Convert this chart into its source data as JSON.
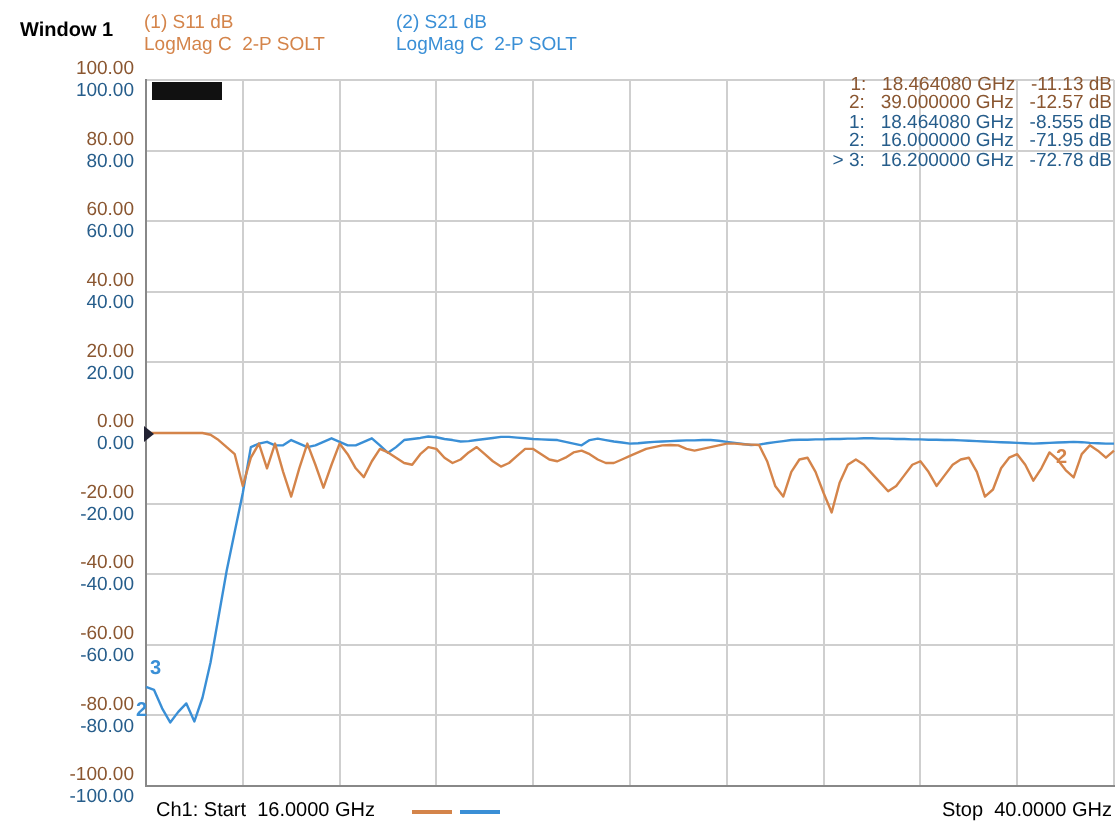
{
  "chart_data": {
    "type": "line",
    "title": "Window 1",
    "legend": "top",
    "grid": true,
    "tick_labels": "y",
    "marker": "none",
    "line_style": "solid",
    "categories": [
      null,
      null,
      null,
      null,
      null,
      null,
      null,
      null,
      null,
      null,
      null,
      null,
      null,
      null,
      null,
      null,
      null,
      null,
      null,
      null,
      null,
      null,
      null,
      null,
      null,
      null,
      null,
      null,
      null,
      null,
      null,
      null,
      null,
      null,
      null,
      null,
      null,
      null,
      null,
      null,
      null,
      null,
      null,
      null,
      null,
      null,
      null,
      null,
      null,
      null,
      null,
      null,
      null,
      null,
      null,
      null,
      null,
      null,
      null,
      null,
      null,
      null,
      null,
      null,
      null,
      null,
      null,
      null,
      null,
      null,
      null,
      null,
      null,
      null,
      null,
      null,
      null,
      null,
      null,
      null,
      null,
      null,
      null,
      null,
      null,
      null,
      null,
      null,
      null,
      null,
      null,
      null,
      null,
      null,
      null,
      null,
      null,
      null,
      null,
      null,
      null,
      null,
      null,
      null,
      null,
      null,
      null,
      null,
      null,
      null,
      null,
      null,
      null,
      null,
      null,
      null,
      null,
      null,
      null,
      null,
      null
    ],
    "ylim": [
      -100,
      100
    ],
    "yticks": [
      {
        "value": -100,
        "label": "-100.00"
      },
      {
        "value": -80,
        "label": "-80.00"
      },
      {
        "value": -60,
        "label": "-60.00"
      },
      {
        "value": -40,
        "label": "-40.00"
      },
      {
        "value": -20,
        "label": "-20.00"
      },
      {
        "value": 0,
        "label": "0.00"
      },
      {
        "value": 20,
        "label": "20.00"
      },
      {
        "value": 40,
        "label": "40.00"
      },
      {
        "value": 60,
        "label": "60.00"
      },
      {
        "value": 80,
        "label": "80.00"
      },
      {
        "value": 100,
        "label": "100.00"
      }
    ],
    "y2lim": [
      -100,
      100
    ],
    "y2ticks": [
      {
        "value": -100,
        "label": "-100.00"
      },
      {
        "value": -80,
        "label": "-80.00"
      },
      {
        "value": -60,
        "label": "-60.00"
      },
      {
        "value": -40,
        "label": "-40.00"
      },
      {
        "value": -20,
        "label": "-20.00"
      },
      {
        "value": 0,
        "label": "0.00"
      },
      {
        "value": 20,
        "label": "20.00"
      },
      {
        "value": 40,
        "label": "40.00"
      },
      {
        "value": 60,
        "label": "60.00"
      },
      {
        "value": 80,
        "label": "80.00"
      },
      {
        "value": 100,
        "label": "100.00"
      }
    ],
    "series": [
      {
        "name": "(1) S11 dB",
        "color": "#d4844a",
        "values": [
          0,
          0,
          0,
          0,
          0,
          0,
          0,
          0,
          -0.5,
          -2,
          -4,
          -6,
          -15,
          -7,
          -3,
          -10,
          -3,
          -11,
          -18,
          -10,
          -3,
          -9,
          -15.5,
          -9,
          -3,
          -6,
          -10,
          -12.5,
          -8,
          -4.5,
          -5.5,
          -7,
          -8.5,
          -9,
          -6,
          -4,
          -4.5,
          -7,
          -8.5,
          -7.5,
          -5.5,
          -4,
          -6,
          -8,
          -9.5,
          -8.5,
          -6.5,
          -4.5,
          -4.5,
          -6,
          -7.5,
          -8,
          -7,
          -5.5,
          -5,
          -6,
          -7.5,
          -8.5,
          -8.5,
          -7.5,
          -6.5,
          -5.5,
          -4.5,
          -4,
          -3.5,
          -3.4,
          -3.5,
          -4.5,
          -5,
          -4.5,
          -4,
          -3.5,
          -3,
          -3,
          -3.2,
          -3.3,
          -3.4,
          -8,
          -15,
          -18,
          -11,
          -7.5,
          -7,
          -11,
          -17,
          -22.5,
          -14,
          -9,
          -7.5,
          -9,
          -11.5,
          -14,
          -16.5,
          -15,
          -12,
          -9,
          -8,
          -11,
          -15,
          -12,
          -9,
          -7.5,
          -7,
          -11,
          -18,
          -16,
          -10,
          -7,
          -6,
          -9,
          -13.5,
          -10,
          -5.5,
          -7.5,
          -10.5,
          -12.57,
          -6,
          -3.5,
          -5,
          -7,
          -5
        ],
        "value_labels": [
          null,
          null,
          null,
          null,
          null,
          null,
          null,
          null,
          null,
          null,
          null,
          null,
          null,
          null,
          null,
          null,
          null,
          null,
          null,
          null,
          null,
          null,
          null,
          null,
          null,
          null,
          null,
          null,
          null,
          null,
          null,
          null,
          null,
          null,
          null,
          null,
          null,
          null,
          null,
          null,
          null,
          null,
          null,
          null,
          null,
          null,
          null,
          null,
          null,
          null,
          null,
          null,
          null,
          null,
          null,
          null,
          null,
          null,
          null,
          null,
          null,
          null,
          null,
          null,
          null,
          null,
          null,
          null,
          null,
          null,
          null,
          null,
          null,
          null,
          null,
          null,
          null,
          null,
          null,
          null,
          null,
          null,
          null,
          null,
          null,
          null,
          null,
          null,
          null,
          null,
          null,
          null,
          null,
          null,
          null,
          null,
          null,
          null,
          null,
          null,
          null,
          null,
          null,
          null,
          null,
          null,
          null,
          null,
          null,
          null,
          null,
          null,
          null,
          null,
          null,
          null,
          null,
          null,
          null,
          null,
          null
        ]
      },
      {
        "name": "(2) S21 dB",
        "color": "#3a8fd6",
        "axis": "y2",
        "values": [
          -71.95,
          -72.78,
          -78,
          -82,
          -79,
          -76.6,
          -81.7,
          -75,
          -65,
          -52,
          -39,
          -28,
          -17,
          -4,
          -3,
          -2.5,
          -3.5,
          -3.5,
          -2,
          -3,
          -4,
          -3.5,
          -2.5,
          -1.5,
          -2.5,
          -3.5,
          -3.5,
          -2.5,
          -1.5,
          -3.5,
          -5.6,
          -4,
          -2,
          -1.7,
          -1.4,
          -1,
          -1.2,
          -1.7,
          -2,
          -2.4,
          -2.3,
          -2,
          -1.7,
          -1.4,
          -1.1,
          -1.1,
          -1.3,
          -1.5,
          -1.7,
          -1.8,
          -1.9,
          -2,
          -2.5,
          -3,
          -3.5,
          -2,
          -1.6,
          -2,
          -2.4,
          -2.7,
          -3,
          -2.9,
          -2.7,
          -2.5,
          -2.4,
          -2.3,
          -2.2,
          -2.1,
          -2.1,
          -2,
          -2,
          -2.2,
          -2.5,
          -2.8,
          -3.1,
          -3.4,
          -3.3,
          -2.9,
          -2.6,
          -2.3,
          -2,
          -1.9,
          -1.9,
          -1.8,
          -1.8,
          -1.7,
          -1.7,
          -1.6,
          -1.6,
          -1.5,
          -1.5,
          -1.6,
          -1.6,
          -1.7,
          -1.7,
          -1.8,
          -1.8,
          -1.9,
          -1.9,
          -2,
          -2,
          -2.1,
          -2.2,
          -2.3,
          -2.4,
          -2.5,
          -2.6,
          -2.7,
          -2.8,
          -2.9,
          -3,
          -2.9,
          -2.8,
          -2.7,
          -2.6,
          -2.5,
          -2.6,
          -2.8,
          -2.9,
          -3,
          -3
        ],
        "value_labels": [
          null,
          null,
          null,
          null,
          null,
          null,
          null,
          null,
          null,
          null,
          null,
          null,
          null,
          null,
          null,
          null,
          null,
          null,
          null,
          null,
          null,
          null,
          null,
          null,
          null,
          null,
          null,
          null,
          null,
          null,
          null,
          null,
          null,
          null,
          null,
          null,
          null,
          null,
          null,
          null,
          null,
          null,
          null,
          null,
          null,
          null,
          null,
          null,
          null,
          null,
          null,
          null,
          null,
          null,
          null,
          null,
          null,
          null,
          null,
          null,
          null,
          null,
          null,
          null,
          null,
          null,
          null,
          null,
          null,
          null,
          null,
          null,
          null,
          null,
          null,
          null,
          null,
          null,
          null,
          null,
          null,
          null,
          null,
          null,
          null,
          null,
          null,
          null,
          null,
          null,
          null,
          null,
          null,
          null,
          null,
          null,
          null,
          null,
          null,
          null,
          null,
          null,
          null,
          null,
          null,
          null,
          null,
          null,
          null,
          null,
          null,
          null,
          null,
          null,
          null,
          null,
          null,
          null,
          null,
          null,
          null
        ]
      }
    ],
    "annotations": [
      "LogMag C  2-P SOLT",
      "LogMag C  2-P SOLT",
      "1:   18.464080 GHz   -11.13 dB",
      "2:   39.000000 GHz   -12.57 dB",
      "1:   18.464080 GHz   -8.555 dB",
      "2:   16.000000 GHz   -71.95 dB",
      "> 3:   16.200000 GHz   -72.78 dB",
      "Ch1: Start  16.0000 GHz",
      "Stop  40.0000 GHz",
      {
        "text": "2",
        "y": -12.57
      },
      "3",
      "2"
    ]
  }
}
